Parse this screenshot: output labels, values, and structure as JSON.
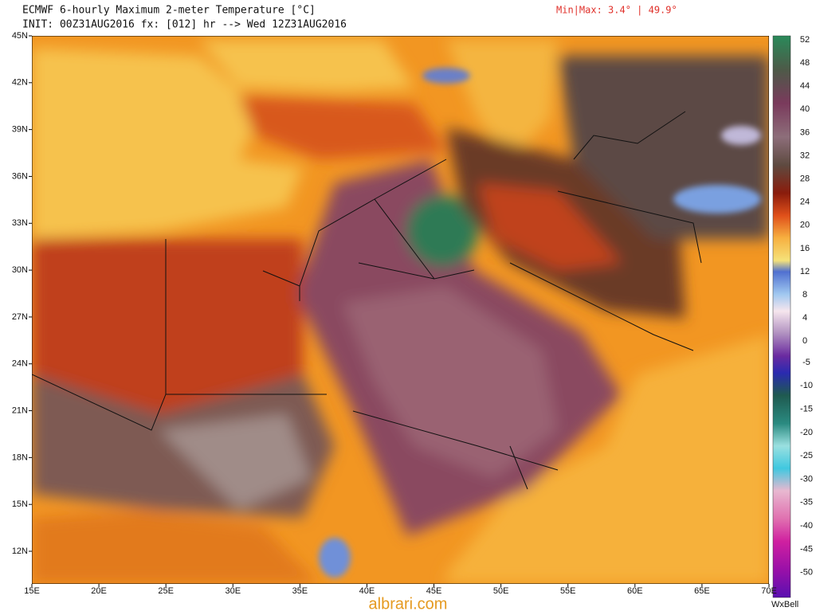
{
  "header": {
    "title": "ECMWF 6-hourly Maximum 2-meter Temperature [°C]",
    "subtitle": "INIT: 00Z31AUG2016 fx: [012] hr --> Wed 12Z31AUG2016",
    "minmax": "Min|Max: 3.4° | 49.9°"
  },
  "map": {
    "lat_labels": [
      "45N",
      "42N",
      "39N",
      "36N",
      "33N",
      "30N",
      "27N",
      "24N",
      "21N",
      "18N",
      "15N",
      "12N"
    ],
    "lon_labels": [
      "15E",
      "20E",
      "25E",
      "30E",
      "35E",
      "40E",
      "45E",
      "50E",
      "55E",
      "60E",
      "65E",
      "70E"
    ]
  },
  "colorbar": {
    "positive_labels": [
      "52",
      "48",
      "44",
      "40",
      "36",
      "32",
      "28",
      "24",
      "20",
      "16",
      "12",
      "8",
      "4",
      "0"
    ],
    "negative_labels": [
      "-5",
      "-10",
      "-15",
      "-20",
      "-25",
      "-30",
      "-35",
      "-40",
      "-45",
      "-50"
    ]
  },
  "footer": {
    "brand": "WxBell",
    "watermark": "albrari.com"
  }
}
